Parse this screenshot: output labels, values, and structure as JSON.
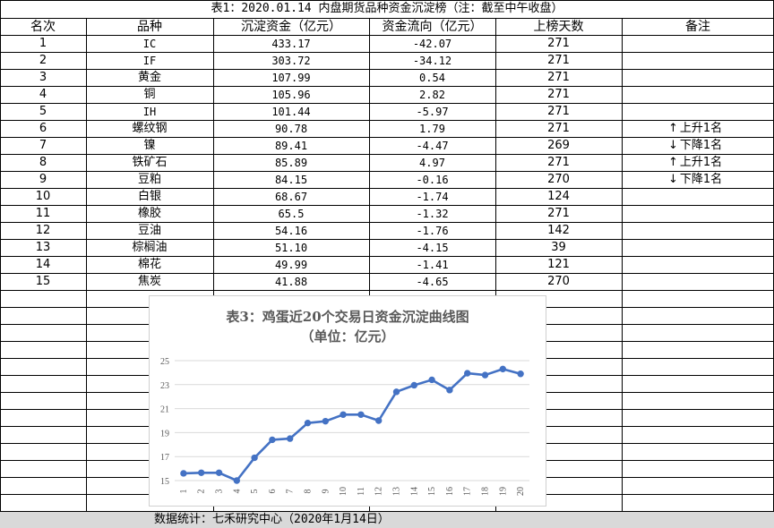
{
  "table": {
    "title": "表1：2020.01.14 内盘期货品种资金沉淀榜（注：截至中午收盘）",
    "headers": [
      "名次",
      "品种",
      "沉淀资金（亿元）",
      "资金流向（亿元）",
      "上榜天数",
      "备注"
    ],
    "rows": [
      {
        "rank": "1",
        "name": "IC",
        "funds": "433.17",
        "flow": "-42.07",
        "days": "271",
        "note": ""
      },
      {
        "rank": "2",
        "name": "IF",
        "funds": "303.72",
        "flow": "-34.12",
        "days": "271",
        "note": ""
      },
      {
        "rank": "3",
        "name": "黄金",
        "funds": "107.99",
        "flow": "0.54",
        "days": "271",
        "note": ""
      },
      {
        "rank": "4",
        "name": "铜",
        "funds": "105.96",
        "flow": "2.82",
        "days": "271",
        "note": ""
      },
      {
        "rank": "5",
        "name": "IH",
        "funds": "101.44",
        "flow": "-5.97",
        "days": "271",
        "note": ""
      },
      {
        "rank": "6",
        "name": "螺纹钢",
        "funds": "90.78",
        "flow": "1.79",
        "days": "271",
        "note": "上升1名",
        "dir": "up"
      },
      {
        "rank": "7",
        "name": "镍",
        "funds": "89.41",
        "flow": "-4.47",
        "days": "269",
        "note": "下降1名",
        "dir": "down"
      },
      {
        "rank": "8",
        "name": "铁矿石",
        "funds": "85.89",
        "flow": "4.97",
        "days": "271",
        "note": "上升1名",
        "dir": "up"
      },
      {
        "rank": "9",
        "name": "豆粕",
        "funds": "84.15",
        "flow": "-0.16",
        "days": "270",
        "note": "下降1名",
        "dir": "down"
      },
      {
        "rank": "10",
        "name": "白银",
        "funds": "68.67",
        "flow": "-1.74",
        "days": "124",
        "note": ""
      },
      {
        "rank": "11",
        "name": "橡胶",
        "funds": "65.5",
        "flow": "-1.32",
        "days": "271",
        "note": ""
      },
      {
        "rank": "12",
        "name": "豆油",
        "funds": "54.16",
        "flow": "-1.76",
        "days": "142",
        "note": ""
      },
      {
        "rank": "13",
        "name": "棕榈油",
        "funds": "51.10",
        "flow": "-4.15",
        "days": "39",
        "note": ""
      },
      {
        "rank": "14",
        "name": "棉花",
        "funds": "49.99",
        "flow": "-1.41",
        "days": "121",
        "note": ""
      },
      {
        "rank": "15",
        "name": "焦炭",
        "funds": "41.88",
        "flow": "-4.65",
        "days": "270",
        "note": ""
      }
    ]
  },
  "footer": "数据统计：七禾研究中心（2020年1月14日）",
  "chart_data": {
    "type": "line",
    "title": "表3：鸡蛋近20个交易日资金沉淀曲线图",
    "subtitle": "（单位：亿元）",
    "x": [
      "1",
      "2",
      "3",
      "4",
      "5",
      "6",
      "7",
      "8",
      "9",
      "10",
      "11",
      "12",
      "13",
      "14",
      "15",
      "16",
      "17",
      "18",
      "19",
      "20"
    ],
    "values": [
      15.6,
      15.65,
      15.65,
      15.0,
      16.9,
      18.4,
      18.5,
      19.8,
      19.95,
      20.5,
      20.5,
      20.0,
      22.4,
      22.95,
      23.4,
      22.55,
      23.95,
      23.8,
      24.3,
      23.9
    ],
    "yticks": [
      "15",
      "17",
      "19",
      "21",
      "23",
      "25"
    ],
    "ylim": [
      15,
      25
    ],
    "color": "#4472c4",
    "grid": true
  }
}
